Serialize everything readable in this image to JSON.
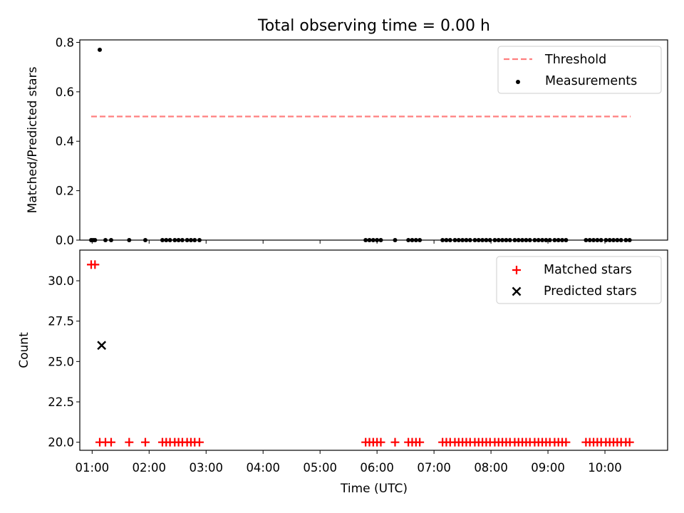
{
  "chart_data": {
    "title": "Total observing time = 0.00 h",
    "xlabel": "Time (UTC)",
    "x_ticks": [
      "01:00",
      "02:00",
      "03:00",
      "04:00",
      "05:00",
      "06:00",
      "07:00",
      "08:00",
      "09:00",
      "10:00"
    ],
    "xlim": [
      "00:47",
      "11:06"
    ],
    "panels": [
      {
        "type": "scatter",
        "ylabel": "Matched/Predicted stars",
        "ylim": [
          0,
          0.81
        ],
        "y_ticks": [
          "0.0",
          "0.2",
          "0.4",
          "0.6",
          "0.8"
        ],
        "y_tick_values": [
          0,
          0.2,
          0.4,
          0.6,
          0.8
        ],
        "legend_position": "top-right",
        "series": [
          {
            "name": "Threshold",
            "style": "dashed-line",
            "color": "#ff7f7f",
            "x": [
              "00:59",
              "10:27"
            ],
            "y": [
              0.5,
              0.5
            ]
          },
          {
            "name": "Measurements",
            "style": "dot",
            "color": "#000000",
            "x": [
              "00:59",
              "01:01",
              "01:03",
              "01:08",
              "01:14",
              "01:20",
              "01:39",
              "01:56",
              "02:14",
              "02:18",
              "02:22",
              "02:27",
              "02:31",
              "02:35",
              "02:40",
              "02:44",
              "02:48",
              "02:53",
              "05:48",
              "05:52",
              "05:56",
              "06:00",
              "06:04",
              "06:19",
              "06:33",
              "06:37",
              "06:41",
              "06:45",
              "07:09",
              "07:13",
              "07:17",
              "07:22",
              "07:26",
              "07:30",
              "07:34",
              "07:38",
              "07:43",
              "07:47",
              "07:51",
              "07:55",
              "07:59",
              "08:04",
              "08:08",
              "08:12",
              "08:16",
              "08:20",
              "08:25",
              "08:29",
              "08:33",
              "08:37",
              "08:41",
              "08:46",
              "08:50",
              "08:54",
              "08:58",
              "09:02",
              "09:07",
              "09:11",
              "09:15",
              "09:19",
              "09:40",
              "09:44",
              "09:48",
              "09:52",
              "09:56",
              "10:01",
              "10:05",
              "10:09",
              "10:13",
              "10:17",
              "10:22",
              "10:26"
            ],
            "y": [
              0,
              0,
              0,
              0.77,
              0,
              0,
              0,
              0,
              0,
              0,
              0,
              0,
              0,
              0,
              0,
              0,
              0,
              0,
              0,
              0,
              0,
              0,
              0,
              0,
              0,
              0,
              0,
              0,
              0,
              0,
              0,
              0,
              0,
              0,
              0,
              0,
              0,
              0,
              0,
              0,
              0,
              0,
              0,
              0,
              0,
              0,
              0,
              0,
              0,
              0,
              0,
              0,
              0,
              0,
              0,
              0,
              0,
              0,
              0,
              0,
              0,
              0,
              0,
              0,
              0,
              0,
              0,
              0,
              0,
              0,
              0,
              0
            ]
          }
        ]
      },
      {
        "type": "scatter",
        "ylabel": "Count",
        "ylim": [
          19.5,
          31.9
        ],
        "y_ticks": [
          "20.0",
          "22.5",
          "25.0",
          "27.5",
          "30.0"
        ],
        "y_tick_values": [
          20,
          22.5,
          25,
          27.5,
          30
        ],
        "legend_position": "top-right",
        "series": [
          {
            "name": "Matched stars",
            "style": "plus",
            "color": "#ff0000",
            "x": [
              "00:59",
              "01:03",
              "01:08",
              "01:14",
              "01:20",
              "01:39",
              "01:56",
              "02:14",
              "02:18",
              "02:22",
              "02:27",
              "02:31",
              "02:35",
              "02:40",
              "02:44",
              "02:48",
              "02:53",
              "05:48",
              "05:52",
              "05:56",
              "06:00",
              "06:04",
              "06:19",
              "06:33",
              "06:37",
              "06:41",
              "06:45",
              "07:09",
              "07:13",
              "07:17",
              "07:22",
              "07:26",
              "07:30",
              "07:34",
              "07:38",
              "07:43",
              "07:47",
              "07:51",
              "07:55",
              "07:59",
              "08:04",
              "08:08",
              "08:12",
              "08:16",
              "08:20",
              "08:25",
              "08:29",
              "08:33",
              "08:37",
              "08:41",
              "08:46",
              "08:50",
              "08:54",
              "08:58",
              "09:02",
              "09:07",
              "09:11",
              "09:15",
              "09:19",
              "09:40",
              "09:44",
              "09:48",
              "09:52",
              "09:56",
              "10:01",
              "10:05",
              "10:09",
              "10:13",
              "10:17",
              "10:22",
              "10:26"
            ],
            "y": [
              31,
              31,
              20,
              20,
              20,
              20,
              20,
              20,
              20,
              20,
              20,
              20,
              20,
              20,
              20,
              20,
              20,
              20,
              20,
              20,
              20,
              20,
              20,
              20,
              20,
              20,
              20,
              20,
              20,
              20,
              20,
              20,
              20,
              20,
              20,
              20,
              20,
              20,
              20,
              20,
              20,
              20,
              20,
              20,
              20,
              20,
              20,
              20,
              20,
              20,
              20,
              20,
              20,
              20,
              20,
              20,
              20,
              20,
              20,
              20,
              20,
              20,
              20,
              20,
              20,
              20,
              20,
              20,
              20,
              20,
              20
            ]
          },
          {
            "name": "Predicted stars",
            "style": "x",
            "color": "#000000",
            "x": [
              "01:10"
            ],
            "y": [
              26
            ]
          }
        ]
      }
    ]
  }
}
